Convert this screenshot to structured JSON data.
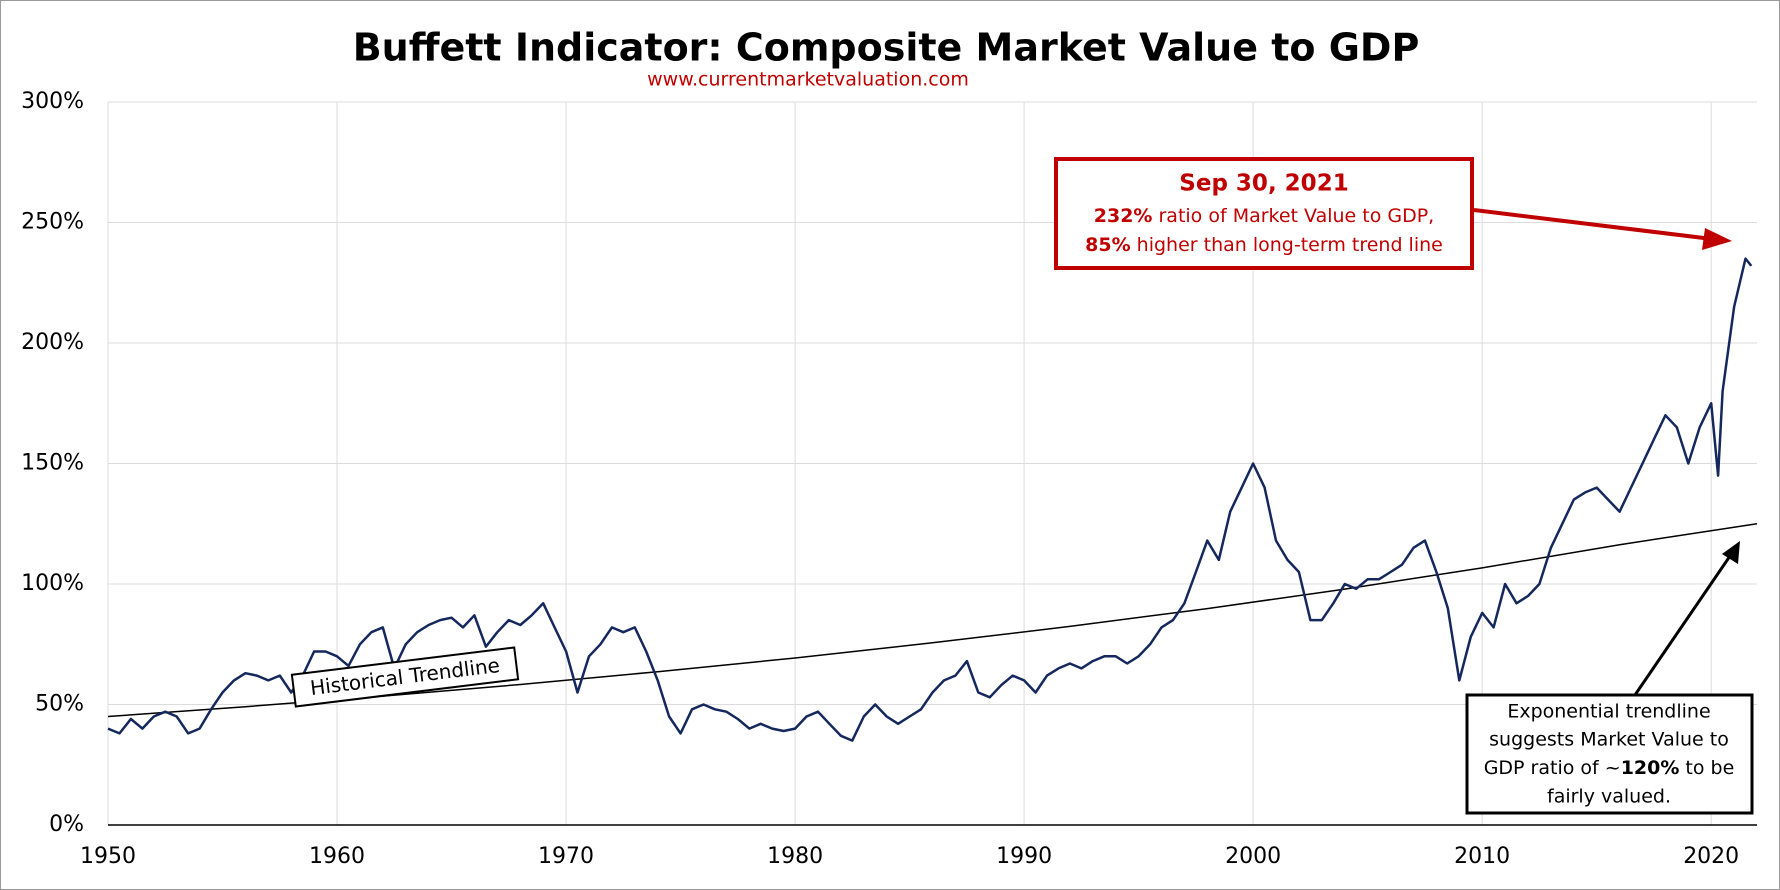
{
  "chart_data": {
    "type": "line",
    "title": "Buffett Indicator: Composite Market Value to GDP",
    "subtitle": "www.currentmarketvaluation.com",
    "xlim": [
      1950,
      2022
    ],
    "xticks": [
      1950,
      1960,
      1970,
      1980,
      1990,
      2000,
      2010,
      2020
    ],
    "ylim": [
      0,
      300
    ],
    "yticks": [
      {
        "value": 0,
        "label": "0%"
      },
      {
        "value": 50,
        "label": "50%"
      },
      {
        "value": 100,
        "label": "100%"
      },
      {
        "value": 150,
        "label": "150%"
      },
      {
        "value": 200,
        "label": "200%"
      },
      {
        "value": 250,
        "label": "250%"
      },
      {
        "value": 300,
        "label": "300%"
      }
    ],
    "grid": true,
    "series": [
      {
        "color": "#14285e",
        "x": [
          1950,
          1950.5,
          1951,
          1951.5,
          1952,
          1952.5,
          1953,
          1953.5,
          1954,
          1954.5,
          1955,
          1955.5,
          1956,
          1956.5,
          1957,
          1957.5,
          1958,
          1958.5,
          1959,
          1959.5,
          1960,
          1960.5,
          1961,
          1961.5,
          1962,
          1962.5,
          1963,
          1963.5,
          1964,
          1964.5,
          1965,
          1965.5,
          1966,
          1966.5,
          1967,
          1967.5,
          1968,
          1968.5,
          1969,
          1969.5,
          1970,
          1970.5,
          1971,
          1971.5,
          1972,
          1972.5,
          1973,
          1973.5,
          1974,
          1974.5,
          1975,
          1975.5,
          1976,
          1976.5,
          1977,
          1977.5,
          1978,
          1978.5,
          1979,
          1979.5,
          1980,
          1980.5,
          1981,
          1981.5,
          1982,
          1982.5,
          1983,
          1983.5,
          1984,
          1984.5,
          1985,
          1985.5,
          1986,
          1986.5,
          1987,
          1987.5,
          1988,
          1988.5,
          1989,
          1989.5,
          1990,
          1990.5,
          1991,
          1991.5,
          1992,
          1992.5,
          1993,
          1993.5,
          1994,
          1994.5,
          1995,
          1995.5,
          1996,
          1996.5,
          1997,
          1997.5,
          1998,
          1998.5,
          1999,
          1999.5,
          2000,
          2000.5,
          2001,
          2001.5,
          2002,
          2002.5,
          2003,
          2003.5,
          2004,
          2004.5,
          2005,
          2005.5,
          2006,
          2006.5,
          2007,
          2007.5,
          2008,
          2008.5,
          2009,
          2009.5,
          2010,
          2010.5,
          2011,
          2011.5,
          2012,
          2012.5,
          2013,
          2013.5,
          2014,
          2014.5,
          2015,
          2015.5,
          2016,
          2016.5,
          2017,
          2017.5,
          2018,
          2018.5,
          2019,
          2019.5,
          2020,
          2020.3,
          2020.5,
          2021,
          2021.5,
          2021.75
        ],
        "values": [
          40,
          38,
          44,
          40,
          45,
          47,
          45,
          38,
          40,
          48,
          55,
          60,
          63,
          62,
          60,
          62,
          55,
          62,
          72,
          72,
          70,
          66,
          75,
          80,
          82,
          65,
          75,
          80,
          83,
          85,
          86,
          82,
          87,
          74,
          80,
          85,
          83,
          87,
          92,
          82,
          72,
          55,
          70,
          75,
          82,
          80,
          82,
          72,
          60,
          45,
          38,
          48,
          50,
          48,
          47,
          44,
          40,
          42,
          40,
          39,
          40,
          45,
          47,
          42,
          37,
          35,
          45,
          50,
          45,
          42,
          45,
          48,
          55,
          60,
          62,
          68,
          55,
          53,
          58,
          62,
          60,
          55,
          62,
          65,
          67,
          65,
          68,
          70,
          70,
          67,
          70,
          75,
          82,
          85,
          92,
          105,
          118,
          110,
          130,
          140,
          150,
          140,
          118,
          110,
          105,
          85,
          85,
          92,
          100,
          98,
          102,
          102,
          105,
          108,
          115,
          118,
          105,
          90,
          60,
          78,
          88,
          82,
          100,
          92,
          95,
          100,
          115,
          125,
          135,
          138,
          140,
          135,
          130,
          140,
          150,
          160,
          170,
          165,
          150,
          165,
          175,
          145,
          180,
          215,
          235,
          232
        ]
      },
      {
        "color": "#000000",
        "x": [
          1950,
          1956,
          1962,
          1968,
          1974,
          1980,
          1986,
          1992,
          1998,
          2004,
          2010,
          2016,
          2022
        ],
        "values": [
          45,
          49.1,
          53.5,
          58.3,
          63.6,
          69.3,
          75.6,
          82.4,
          89.8,
          97.9,
          106.7,
          116.3,
          125
        ]
      }
    ],
    "annotations": {
      "trend_label": "Historical Trendline",
      "callout": {
        "date": "Sep 30, 2021",
        "line1_bold": "232%",
        "line1": " ratio of Market Value to GDP,",
        "line2_bold": "85%",
        "line2": " higher than long-term trend line"
      },
      "note": {
        "line1": "Exponential trendline",
        "line2": "suggests Market Value to",
        "line3a": "GDP ratio of ~",
        "line3_bold": "120%",
        "line3b": " to be",
        "line4": "fairly valued."
      }
    }
  }
}
